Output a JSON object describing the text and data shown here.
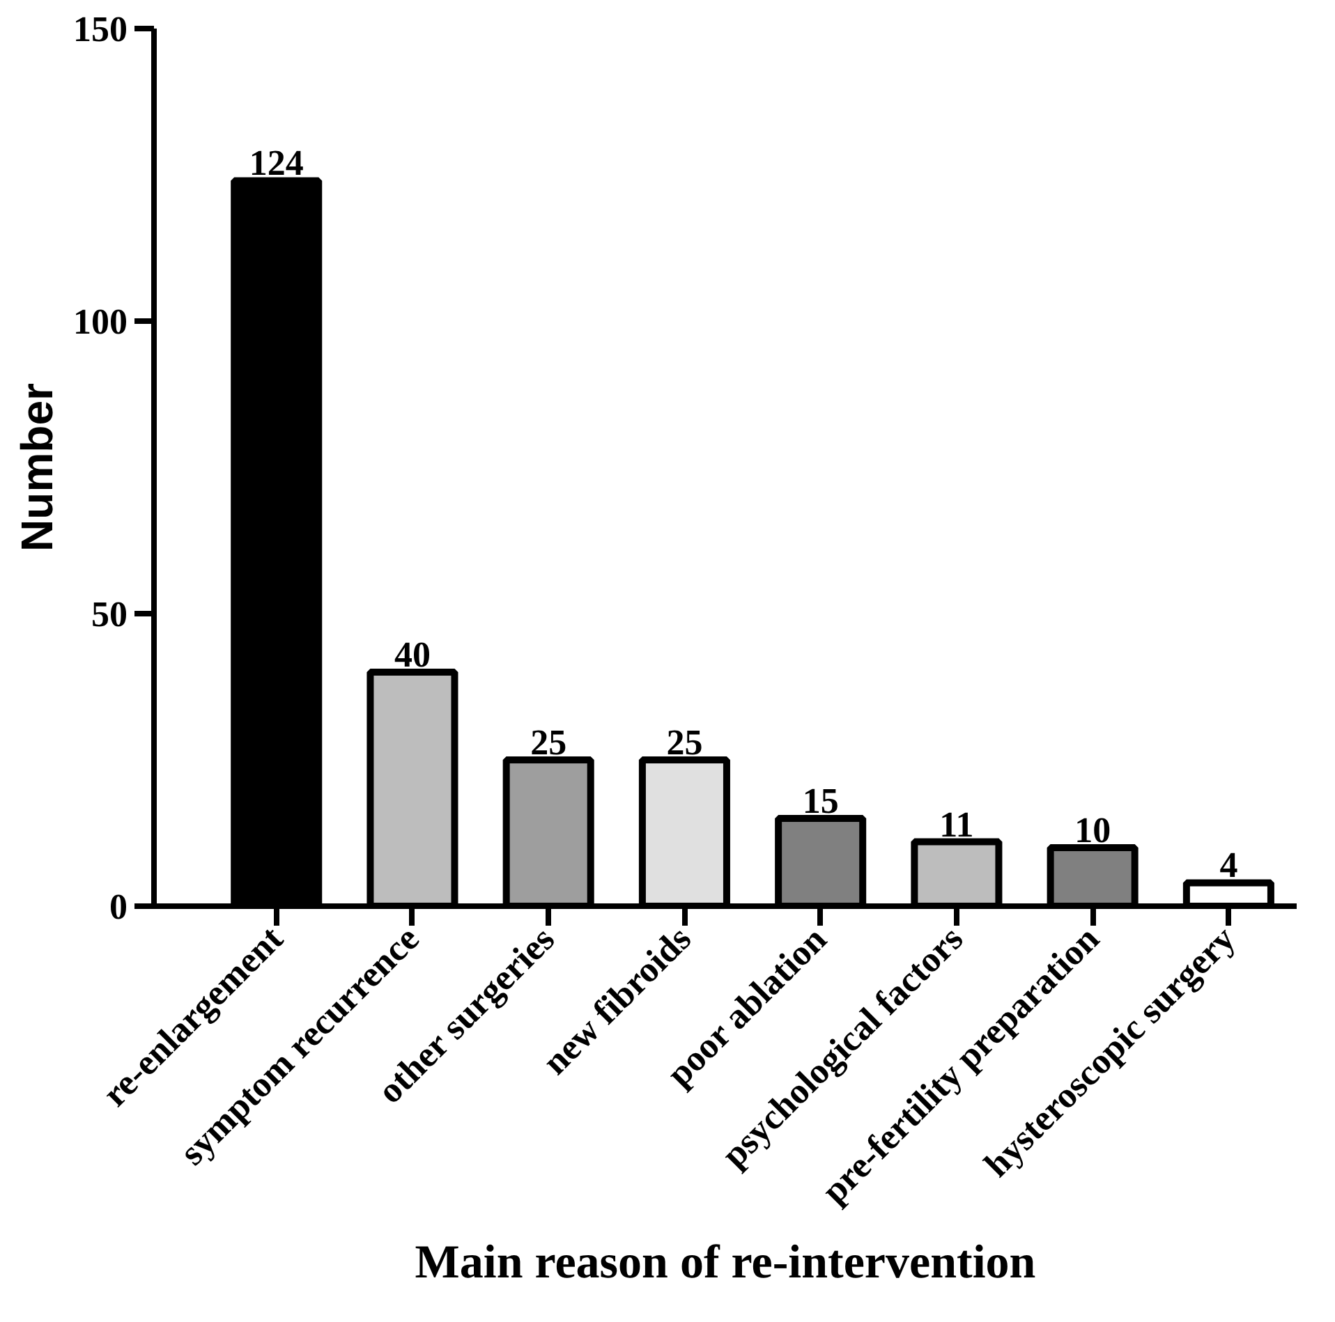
{
  "chart_data": {
    "type": "bar",
    "xlabel": "Main reason of re-intervention",
    "ylabel": "Number",
    "categories": [
      "re-enlargement",
      "symptom recurrence",
      "other surgeries",
      "new fibroids",
      "poor ablation",
      "psychological factors",
      "pre-fertility preparation",
      "hysteroscopic surgery"
    ],
    "values": [
      124,
      40,
      25,
      25,
      15,
      11,
      10,
      4
    ],
    "colors": [
      "#000000",
      "#bdbdbd",
      "#9e9e9e",
      "#e0e0e0",
      "#808080",
      "#bdbdbd",
      "#808080",
      "#ffffff"
    ],
    "ylim": [
      0,
      150
    ],
    "yticks": [
      0,
      50,
      100,
      150
    ],
    "data_labels": true,
    "grid": false
  }
}
